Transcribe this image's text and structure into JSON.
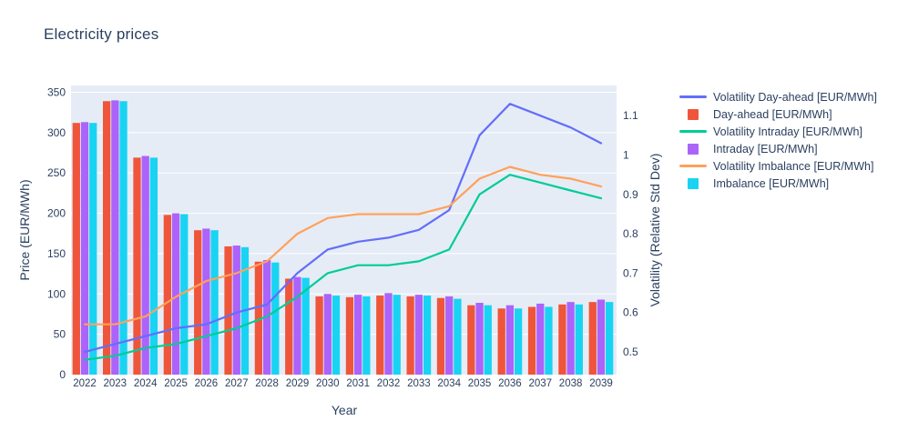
{
  "chart_data": {
    "type": "bar+line",
    "title": "Electricity prices",
    "xlabel": "Year",
    "ylabel_left": "Price (EUR/MWh)",
    "ylabel_right": "Volatility (Relative Std Dev)",
    "plot_bgcolor": "#e5ecf6",
    "grid_color": "#ffffff",
    "text_color": "#2a3f5f",
    "legend_position": "right",
    "x": [
      2022,
      2023,
      2024,
      2025,
      2026,
      2027,
      2028,
      2029,
      2030,
      2031,
      2032,
      2033,
      2034,
      2035,
      2036,
      2037,
      2038,
      2039
    ],
    "left_axis": {
      "range": [
        0,
        350
      ],
      "ticks": [
        0,
        50,
        100,
        150,
        200,
        250,
        300,
        350
      ]
    },
    "right_axis": {
      "range": [
        0.5,
        1.1
      ],
      "tick_labels": [
        "0.5",
        "0.6",
        "0.7",
        "0.8",
        "0.9",
        "1",
        "1.1"
      ]
    },
    "bar_series": [
      {
        "name": "Day-ahead [EUR/MWh]",
        "color": "#ef553b",
        "axis": "left",
        "values": [
          312,
          339,
          269,
          198,
          179,
          159,
          140,
          119,
          97,
          96,
          98,
          97,
          95,
          86,
          82,
          84,
          87,
          90
        ]
      },
      {
        "name": "Intraday [EUR/MWh]",
        "color": "#ab63fa",
        "axis": "left",
        "values": [
          313,
          340,
          271,
          200,
          181,
          160,
          142,
          121,
          100,
          99,
          101,
          99,
          97,
          89,
          86,
          88,
          90,
          93
        ]
      },
      {
        "name": "Imbalance [EUR/MWh]",
        "color": "#19d3f3",
        "axis": "left",
        "values": [
          312,
          339,
          269,
          199,
          179,
          158,
          139,
          120,
          98,
          97,
          99,
          98,
          94,
          86,
          82,
          84,
          87,
          90
        ]
      }
    ],
    "line_series": [
      {
        "name": "Volatility Day-ahead [EUR/MWh]",
        "color": "#636efa",
        "axis": "right",
        "values": [
          0.5,
          0.52,
          0.54,
          0.56,
          0.57,
          0.6,
          0.62,
          0.7,
          0.76,
          0.78,
          0.79,
          0.81,
          0.86,
          1.05,
          1.13,
          1.1,
          1.07,
          1.03
        ]
      },
      {
        "name": "Volatility Intraday [EUR/MWh]",
        "color": "#00cc96",
        "axis": "right",
        "values": [
          0.48,
          0.49,
          0.51,
          0.52,
          0.54,
          0.56,
          0.59,
          0.64,
          0.7,
          0.72,
          0.72,
          0.73,
          0.76,
          0.9,
          0.95,
          0.93,
          0.91,
          0.89
        ]
      },
      {
        "name": "Volatility Imbalance [EUR/MWh]",
        "color": "#ffa15a",
        "axis": "right",
        "values": [
          0.57,
          0.57,
          0.59,
          0.64,
          0.68,
          0.7,
          0.73,
          0.8,
          0.84,
          0.85,
          0.85,
          0.85,
          0.87,
          0.94,
          0.97,
          0.95,
          0.94,
          0.92
        ]
      }
    ]
  },
  "legend": {
    "items": [
      {
        "label": "Volatility Day-ahead [EUR/MWh]",
        "color": "#636efa",
        "sample": "line"
      },
      {
        "label": "Day-ahead [EUR/MWh]",
        "color": "#ef553b",
        "sample": "square"
      },
      {
        "label": "Volatility Intraday [EUR/MWh]",
        "color": "#00cc96",
        "sample": "line"
      },
      {
        "label": "Intraday [EUR/MWh]",
        "color": "#ab63fa",
        "sample": "square"
      },
      {
        "label": "Volatility Imbalance [EUR/MWh]",
        "color": "#ffa15a",
        "sample": "line"
      },
      {
        "label": "Imbalance [EUR/MWh]",
        "color": "#19d3f3",
        "sample": "square"
      }
    ]
  }
}
